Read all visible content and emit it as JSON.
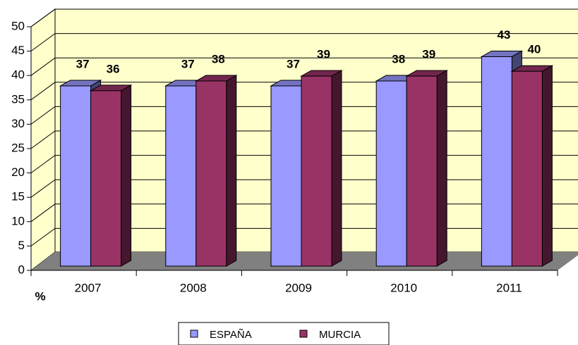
{
  "chart_data": {
    "type": "bar3d",
    "categories": [
      "2007",
      "2008",
      "2009",
      "2010",
      "2011"
    ],
    "series": [
      {
        "name": "ESPAÑA",
        "color": "#9999ff",
        "values": [
          37,
          37,
          37,
          38,
          43
        ]
      },
      {
        "name": "MURCIA",
        "color": "#993366",
        "values": [
          36,
          38,
          39,
          39,
          40
        ]
      }
    ],
    "ylim": [
      0,
      50
    ],
    "yticks": [
      0,
      5,
      10,
      15,
      20,
      25,
      30,
      35,
      40,
      45,
      50
    ],
    "y_label": "%",
    "grid": true,
    "legend": "bottom"
  }
}
